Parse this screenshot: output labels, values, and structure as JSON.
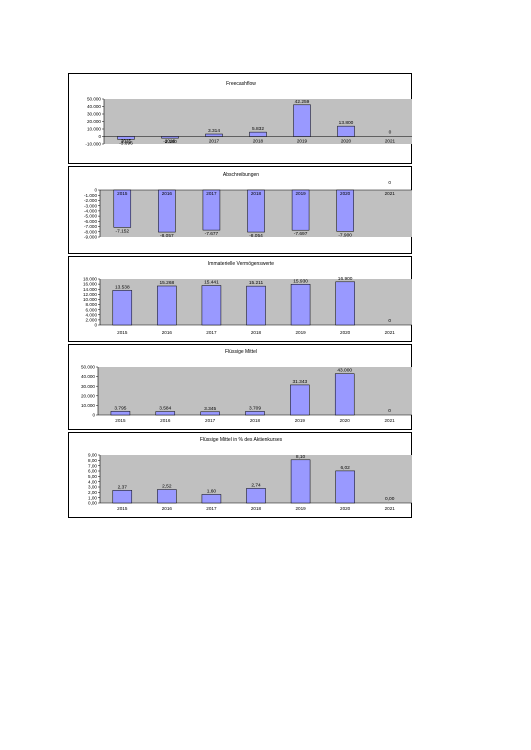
{
  "colors": {
    "plot_bg": "#c0c0c0",
    "bar_fill": "#9999ff",
    "bar_stroke": "#000000"
  },
  "chart_data": [
    {
      "type": "bar",
      "title": "Freecashflow",
      "categories": [
        "2015",
        "2016",
        "2017",
        "2018",
        "2019",
        "2020",
        "2021"
      ],
      "values": [
        -3696,
        -2180,
        3314,
        5832,
        42259,
        13800,
        0
      ],
      "value_labels": [
        "-3.696",
        "-2.180",
        "3.314",
        "5.832",
        "42.259",
        "13.800",
        "0"
      ],
      "ylim": [
        -10000,
        50000
      ],
      "yticks": [
        -10000,
        0,
        10000,
        20000,
        30000,
        40000,
        50000
      ],
      "ytick_labels": [
        "-10.000",
        "0",
        "10.000",
        "20.000",
        "30.000",
        "40.000",
        "50.000"
      ],
      "xlabel": "",
      "ylabel": ""
    },
    {
      "type": "bar",
      "title": "Abschreibungen",
      "categories": [
        "2015",
        "2016",
        "2017",
        "2018",
        "2019",
        "2020",
        "2021"
      ],
      "values": [
        -7152,
        -8057,
        -7677,
        -8054,
        -7697,
        -7900,
        0
      ],
      "value_labels": [
        "-7.152",
        "-8.057",
        "-7.677",
        "-8.054",
        "-7.697",
        "-7.900",
        "0"
      ],
      "ylim": [
        -9000,
        0
      ],
      "yticks": [
        0,
        -1000,
        -2000,
        -3000,
        -4000,
        -5000,
        -6000,
        -7000,
        -8000,
        -9000
      ],
      "ytick_labels": [
        "0",
        "-1.000",
        "-2.000",
        "-3.000",
        "-4.000",
        "-5.000",
        "-6.000",
        "-7.000",
        "-8.000",
        "-9.000"
      ],
      "xlabel": "",
      "ylabel": ""
    },
    {
      "type": "bar",
      "title": "Immaterielle Vermögenswerte",
      "categories": [
        "2015",
        "2016",
        "2017",
        "2018",
        "2019",
        "2020",
        "2021"
      ],
      "values": [
        13538,
        15268,
        15441,
        15211,
        15930,
        16900,
        0
      ],
      "value_labels": [
        "13.538",
        "15.268",
        "15.441",
        "15.211",
        "15.930",
        "16.900",
        "0"
      ],
      "ylim": [
        0,
        18000
      ],
      "yticks": [
        0,
        2000,
        4000,
        6000,
        8000,
        10000,
        12000,
        14000,
        16000,
        18000
      ],
      "ytick_labels": [
        "0",
        "2.000",
        "4.000",
        "6.000",
        "8.000",
        "10.000",
        "12.000",
        "14.000",
        "16.000",
        "18.000"
      ],
      "xlabel": "",
      "ylabel": ""
    },
    {
      "type": "bar",
      "title": "Flüssige Mittel",
      "categories": [
        "2015",
        "2016",
        "2017",
        "2018",
        "2019",
        "2020",
        "2021"
      ],
      "values": [
        3795,
        3584,
        3345,
        3709,
        31343,
        43000,
        0
      ],
      "value_labels": [
        "3.795",
        "3.584",
        "3.345",
        "3.709",
        "31.343",
        "43.000",
        "0"
      ],
      "ylim": [
        0,
        50000
      ],
      "yticks": [
        0,
        10000,
        20000,
        30000,
        40000,
        50000
      ],
      "ytick_labels": [
        "0",
        "10.000",
        "20.000",
        "30.000",
        "40.000",
        "50.000"
      ],
      "xlabel": "",
      "ylabel": ""
    },
    {
      "type": "bar",
      "title": "Flüssige Mittel in % des Aktienkurses",
      "categories": [
        "2015",
        "2016",
        "2017",
        "2018",
        "2019",
        "2020",
        "2021"
      ],
      "values": [
        2.37,
        2.52,
        1.6,
        2.74,
        8.1,
        6.02,
        0.0
      ],
      "value_labels": [
        "2,37",
        "2,52",
        "1,60",
        "2,74",
        "8,10",
        "6,02",
        "0,00"
      ],
      "ylim": [
        0,
        9
      ],
      "yticks": [
        0,
        1,
        2,
        3,
        4,
        5,
        6,
        7,
        8,
        9
      ],
      "ytick_labels": [
        "0,00",
        "1,00",
        "2,00",
        "3,00",
        "4,00",
        "5,00",
        "6,00",
        "7,00",
        "8,00",
        "9,00"
      ],
      "xlabel": "",
      "ylabel": ""
    }
  ]
}
